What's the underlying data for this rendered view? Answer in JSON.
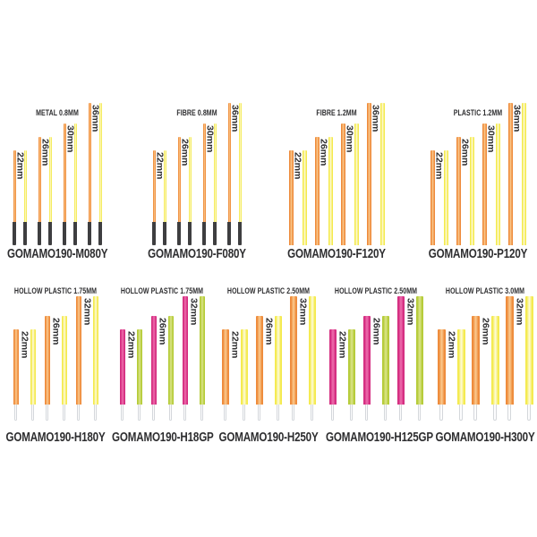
{
  "page": {
    "background": "#ffffff",
    "text_color": "#2D2D2F"
  },
  "palette": {
    "orange": {
      "edge": "#EE8B3B",
      "mid": "#FBCB90"
    },
    "yellow": {
      "edge": "#F4EA4D",
      "mid": "#FEFBDC"
    },
    "pink": {
      "edge": "#D42C80",
      "mid": "#EE6FAE"
    },
    "green": {
      "edge": "#B5CB38",
      "mid": "#DCE58B"
    }
  },
  "tips": {
    "black_color": "#3E3E40",
    "clear_fill": "#FDFDFE",
    "clear_border": "#D4D7DB"
  },
  "rows": [
    {
      "name": "solid-antennas",
      "sizes": [
        {
          "label": "22mm",
          "mm": 22
        },
        {
          "label": "26mm",
          "mm": 26
        },
        {
          "label": "30mm",
          "mm": 30
        },
        {
          "label": "36mm",
          "mm": 36
        }
      ],
      "groups": [
        {
          "title": "METAL 0.8MM",
          "code": "GOMAMO190-M080Y",
          "diameter": "0.8",
          "colors": [
            "orange",
            "yellow"
          ],
          "tip": "black"
        },
        {
          "title": "FIBRE 0.8MM",
          "code": "GOMAMO190-F080Y",
          "diameter": "0.8",
          "colors": [
            "orange",
            "yellow"
          ],
          "tip": "black"
        },
        {
          "title": "FIBRE 1.2MM",
          "code": "GOMAMO190-F120Y",
          "diameter": "1.2",
          "colors": [
            "orange",
            "yellow"
          ],
          "tip": "none"
        },
        {
          "title": "PLASTIC 1.2MM",
          "code": "GOMAMO190-P120Y",
          "diameter": "1.2",
          "colors": [
            "orange",
            "yellow"
          ],
          "tip": "none"
        }
      ]
    },
    {
      "name": "hollow-antennas",
      "sizes": [
        {
          "label": "22mm",
          "mm": 22
        },
        {
          "label": "26mm",
          "mm": 26
        },
        {
          "label": "32mm",
          "mm": 32
        }
      ],
      "groups": [
        {
          "title": "HOLLOW PLASTIC 1.75MM",
          "code": "GOMAMO190-H180Y",
          "diameter": "1.75",
          "colors": [
            "orange",
            "yellow"
          ],
          "tip": "clear"
        },
        {
          "title": "HOLLOW PLASTIC 1.75MM",
          "code": "GOMAMO190-H18GP",
          "diameter": "1.75",
          "colors": [
            "pink",
            "green"
          ],
          "tip": "clear"
        },
        {
          "title": "HOLLOW PLASTIC 2.50MM",
          "code": "GOMAMO190-H250Y",
          "diameter": "2.50",
          "colors": [
            "orange",
            "yellow"
          ],
          "tip": "clear"
        },
        {
          "title": "HOLLOW PLASTIC 2.50MM",
          "code": "GOMAMO190-H125GP",
          "diameter": "2.50",
          "colors": [
            "pink",
            "green"
          ],
          "tip": "clear"
        },
        {
          "title": "HOLLOW PLASTIC 3.0MM",
          "code": "GOMAMO190-H300Y",
          "diameter": "3.0",
          "colors": [
            "orange",
            "yellow"
          ],
          "tip": "clear"
        }
      ]
    }
  ]
}
